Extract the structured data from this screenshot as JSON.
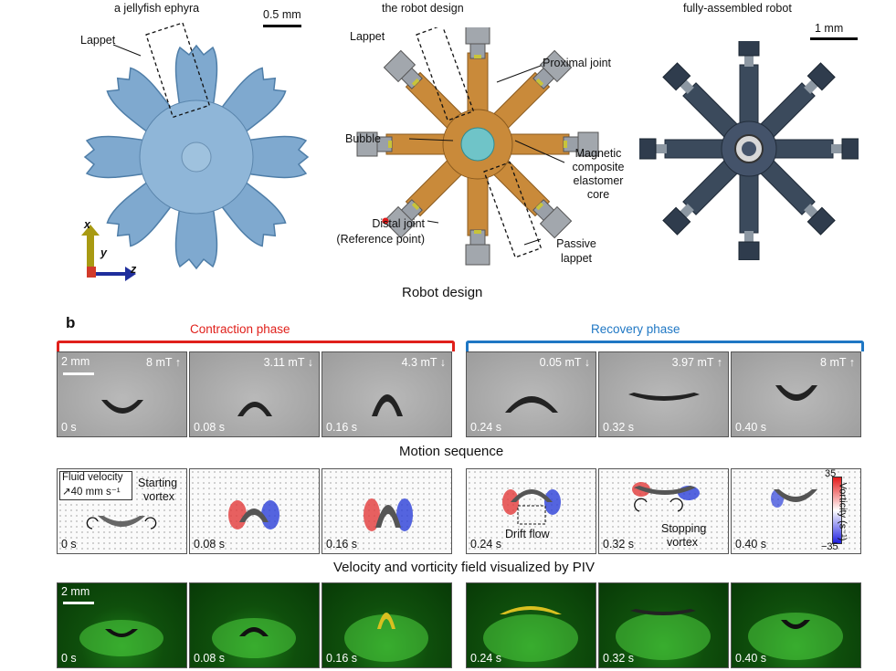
{
  "panel_a": {
    "titles": {
      "ephyra": "a jellyfish ephyra",
      "design": "the robot design",
      "assembled": "fully-assembled robot"
    },
    "scale_ephyra": "0.5 mm",
    "scale_robot": "1 mm",
    "ephyra_labels": {
      "lappet": "Lappet"
    },
    "axes": {
      "x": "x",
      "y": "y",
      "z": "z"
    },
    "design_labels": {
      "lappet": "Lappet",
      "proximal_joint": "Proximal joint",
      "bubble": "Bubble",
      "core_1": "Magnetic",
      "core_2": "composite",
      "core_3": "elastomer",
      "core_4": "core",
      "distal_1": "Distal joint",
      "distal_2": "(Reference point)",
      "passive_1": "Passive",
      "passive_2": "lappet"
    },
    "section_title": "Robot design"
  },
  "panel_b": {
    "letter": "b",
    "contraction": "Contraction phase",
    "recovery": "Recovery phase",
    "colors": {
      "contraction": "#e0201b",
      "recovery": "#1f77c4"
    },
    "motion_scale": "2 mm",
    "motion_frames": [
      {
        "time": "0 s",
        "field": "8 mT",
        "arrow": "up"
      },
      {
        "time": "0.08 s",
        "field": "3.11 mT",
        "arrow": "down"
      },
      {
        "time": "0.16 s",
        "field": "4.3 mT",
        "arrow": "down"
      },
      {
        "time": "0.24 s",
        "field": "0.05 mT",
        "arrow": "down"
      },
      {
        "time": "0.32 s",
        "field": "3.97 mT",
        "arrow": "up"
      },
      {
        "time": "0.40 s",
        "field": "8 mT",
        "arrow": "up"
      }
    ],
    "motion_title": "Motion sequence",
    "piv_frames": [
      {
        "time": "0 s"
      },
      {
        "time": "0.08 s"
      },
      {
        "time": "0.16 s"
      },
      {
        "time": "0.24 s"
      },
      {
        "time": "0.32 s"
      },
      {
        "time": "0.40 s"
      }
    ],
    "piv_labels": {
      "fluid_velocity": "Fluid velocity",
      "velocity_scale": "40 mm s⁻¹",
      "starting_1": "Starting",
      "starting_2": "vortex",
      "drift": "Drift flow",
      "stopping_1": "Stopping",
      "stopping_2": "vortex"
    },
    "colorbar": {
      "max": "35",
      "min": "−35",
      "label": "Vorticity (s⁻¹)"
    },
    "piv_title": "Velocity and vorticity field visualized by PIV",
    "dye_scale": "2 mm",
    "dye_frames": [
      {
        "time": "0 s"
      },
      {
        "time": "0.08 s"
      },
      {
        "time": "0.16 s"
      },
      {
        "time": "0.24 s"
      },
      {
        "time": "0.32 s"
      },
      {
        "time": "0.40 s"
      }
    ]
  }
}
